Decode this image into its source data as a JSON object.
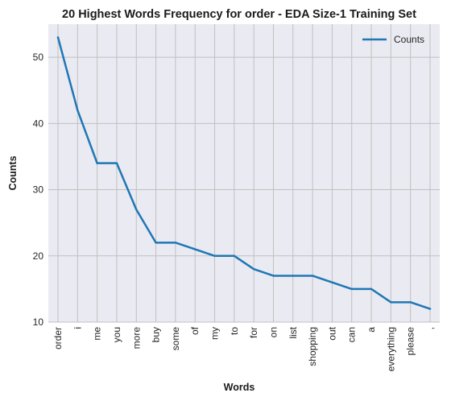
{
  "chart_data": {
    "type": "line",
    "title": "20 Highest Words Frequency for order - EDA Size-1 Training Set",
    "xlabel": "Words",
    "ylabel": "Counts",
    "ylim": [
      10,
      55
    ],
    "yticks": [
      10,
      20,
      30,
      40,
      50
    ],
    "grid": true,
    "legend_position": "top-right",
    "categories": [
      "order",
      "i",
      "me",
      "you",
      "more",
      "buy",
      "some",
      "of",
      "my",
      "to",
      "for",
      "on",
      "list",
      "shopping",
      "out",
      "can",
      "a",
      "everything",
      "please",
      ","
    ],
    "series": [
      {
        "name": "Counts",
        "color": "#1f77b4",
        "values": [
          53,
          42,
          34,
          34,
          27,
          22,
          22,
          21,
          20,
          20,
          18,
          17,
          17,
          17,
          16,
          15,
          15,
          13,
          13,
          12
        ]
      }
    ]
  },
  "colors": {
    "plot_background": "#eaeaf2",
    "grid": "#c0c0c0"
  }
}
